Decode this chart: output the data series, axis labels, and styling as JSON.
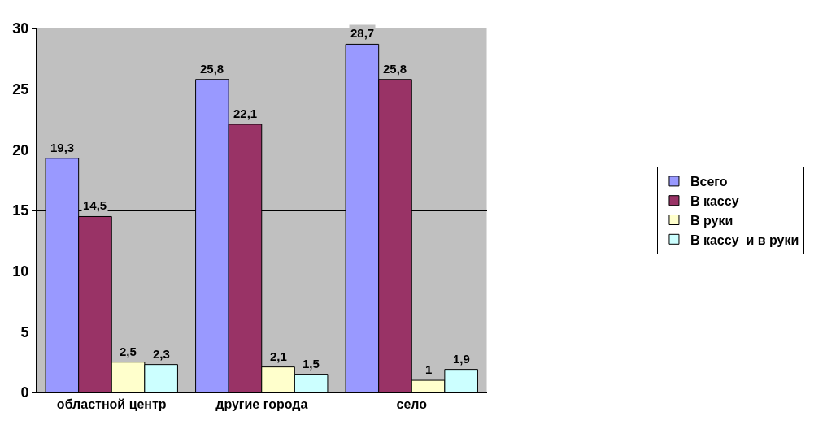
{
  "chart_data": {
    "type": "bar",
    "categories": [
      "областной центр",
      "другие города",
      "село"
    ],
    "series": [
      {
        "name": "Всего",
        "color": "#9999ff",
        "values": [
          19.3,
          25.8,
          28.7
        ],
        "value_labels": [
          "19,3",
          "25,8",
          "28,7"
        ]
      },
      {
        "name": "В кассу",
        "color": "#993366",
        "values": [
          14.5,
          22.1,
          25.8
        ],
        "value_labels": [
          "14,5",
          "22,1",
          "25,8"
        ]
      },
      {
        "name": "В руки",
        "color": "#ffffcc",
        "values": [
          2.5,
          2.1,
          1
        ],
        "value_labels": [
          "2,5",
          "2,1",
          "1"
        ]
      },
      {
        "name": "В кассу  и в руки",
        "color": "#ccffff",
        "values": [
          2.3,
          1.5,
          1.9
        ],
        "value_labels": [
          "2,3",
          "1,5",
          "1,9"
        ]
      }
    ],
    "ylim": [
      0,
      30
    ],
    "yticks": [
      0,
      5,
      10,
      15,
      20,
      25,
      30
    ],
    "grid": "y",
    "legend": "right"
  }
}
